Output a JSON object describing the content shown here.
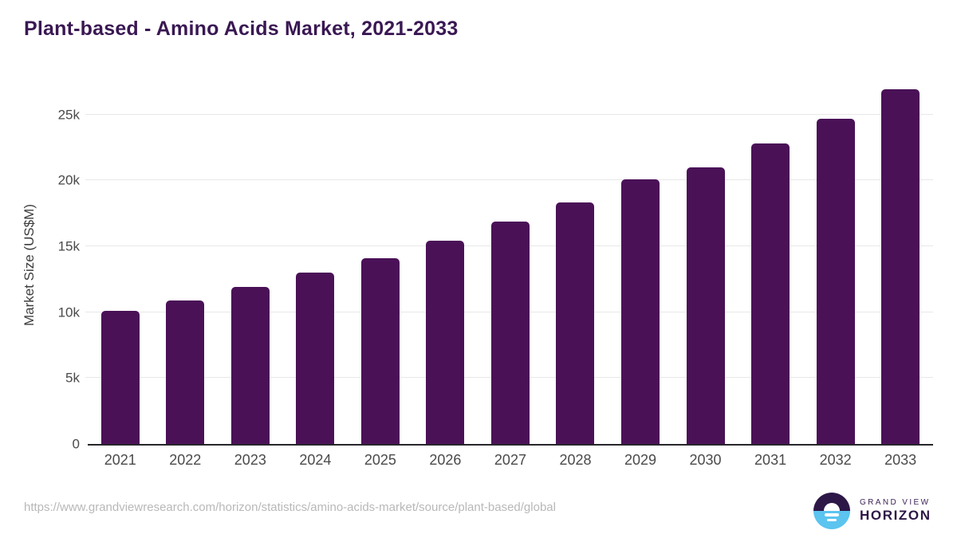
{
  "title": "Plant-based - Amino Acids Market, 2021-2033",
  "chart_data": {
    "type": "bar",
    "title": "Plant-based - Amino Acids Market, 2021-2033",
    "categories": [
      "2021",
      "2022",
      "2023",
      "2024",
      "2025",
      "2026",
      "2027",
      "2028",
      "2029",
      "2030",
      "2031",
      "2032",
      "2033"
    ],
    "values": [
      10100,
      10900,
      11900,
      13000,
      14100,
      15400,
      16900,
      18300,
      20100,
      21000,
      22800,
      24700,
      26900
    ],
    "xlabel": "",
    "ylabel": "Market Size (US$M)",
    "ylim": [
      0,
      27150
    ],
    "yticks": [
      0,
      5000,
      10000,
      15000,
      20000,
      25000
    ],
    "ytick_labels": [
      "0",
      "5k",
      "10k",
      "15k",
      "20k",
      "25k"
    ],
    "grid": true,
    "legend": false,
    "bar_color": "#4a1157"
  },
  "footer": {
    "source_url": "https://www.grandviewresearch.com/horizon/statistics/amino-acids-market/source/plant-based/global",
    "brand": {
      "line1": "GRAND VIEW",
      "line2": "HORIZON"
    }
  },
  "colors": {
    "title_text": "#3a1853",
    "bar": "#4a1157",
    "gridline": "#e8e8e8",
    "axis_line": "#26262b",
    "tick_text": "#4a4a4a",
    "url_text": "#b8b8b8",
    "logo_purple": "#2d1747",
    "logo_blue": "#5bc4ef"
  }
}
